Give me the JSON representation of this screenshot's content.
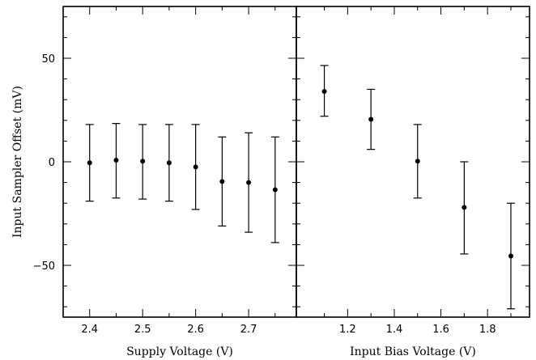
{
  "chart_data": [
    {
      "type": "scatter",
      "error_bars": true,
      "xlabel": "Supply Voltage (V)",
      "ylabel": "Input Sampler Offset (mV)",
      "xlim": [
        2.35,
        2.79
      ],
      "ylim": [
        -75,
        75
      ],
      "xticks": [
        2.4,
        2.5,
        2.6,
        2.7
      ],
      "xtick_labels": [
        "2.4",
        "2.5",
        "2.6",
        "2.7"
      ],
      "xminor": [
        2.45,
        2.55,
        2.65,
        2.75
      ],
      "yticks": [
        -50,
        0,
        50
      ],
      "ytick_labels": [
        "−50",
        "0",
        "50"
      ],
      "points": [
        {
          "x": 2.4,
          "y": -0.5,
          "ylow": -19,
          "yhigh": 18
        },
        {
          "x": 2.45,
          "y": 0.8,
          "ylow": -17.5,
          "yhigh": 18.5
        },
        {
          "x": 2.5,
          "y": 0.3,
          "ylow": -18,
          "yhigh": 18
        },
        {
          "x": 2.55,
          "y": -0.5,
          "ylow": -19,
          "yhigh": 18
        },
        {
          "x": 2.6,
          "y": -2.5,
          "ylow": -23,
          "yhigh": 18
        },
        {
          "x": 2.65,
          "y": -9.5,
          "ylow": -31,
          "yhigh": 12
        },
        {
          "x": 2.7,
          "y": -10,
          "ylow": -34,
          "yhigh": 14
        },
        {
          "x": 2.75,
          "y": -13.5,
          "ylow": -39,
          "yhigh": 12
        }
      ]
    },
    {
      "type": "scatter",
      "error_bars": true,
      "xlabel": "Input Bias Voltage (V)",
      "ylabel": "",
      "xlim": [
        0.98,
        1.98
      ],
      "ylim": [
        -75,
        75
      ],
      "xticks": [
        1.2,
        1.4,
        1.6,
        1.8
      ],
      "xtick_labels": [
        "1.2",
        "1.4",
        "1.6",
        "1.8"
      ],
      "xminor": [
        1.1,
        1.3,
        1.5,
        1.7,
        1.9
      ],
      "yticks": [
        -50,
        0,
        50
      ],
      "ytick_labels": [],
      "points": [
        {
          "x": 1.1,
          "y": 34,
          "ylow": 22,
          "yhigh": 46.5
        },
        {
          "x": 1.3,
          "y": 20.5,
          "ylow": 6,
          "yhigh": 35
        },
        {
          "x": 1.5,
          "y": 0.3,
          "ylow": -17.5,
          "yhigh": 18
        },
        {
          "x": 1.7,
          "y": -22,
          "ylow": -44.5,
          "yhigh": 0
        },
        {
          "x": 1.9,
          "y": -45.5,
          "ylow": -71,
          "yhigh": -20
        }
      ]
    }
  ]
}
